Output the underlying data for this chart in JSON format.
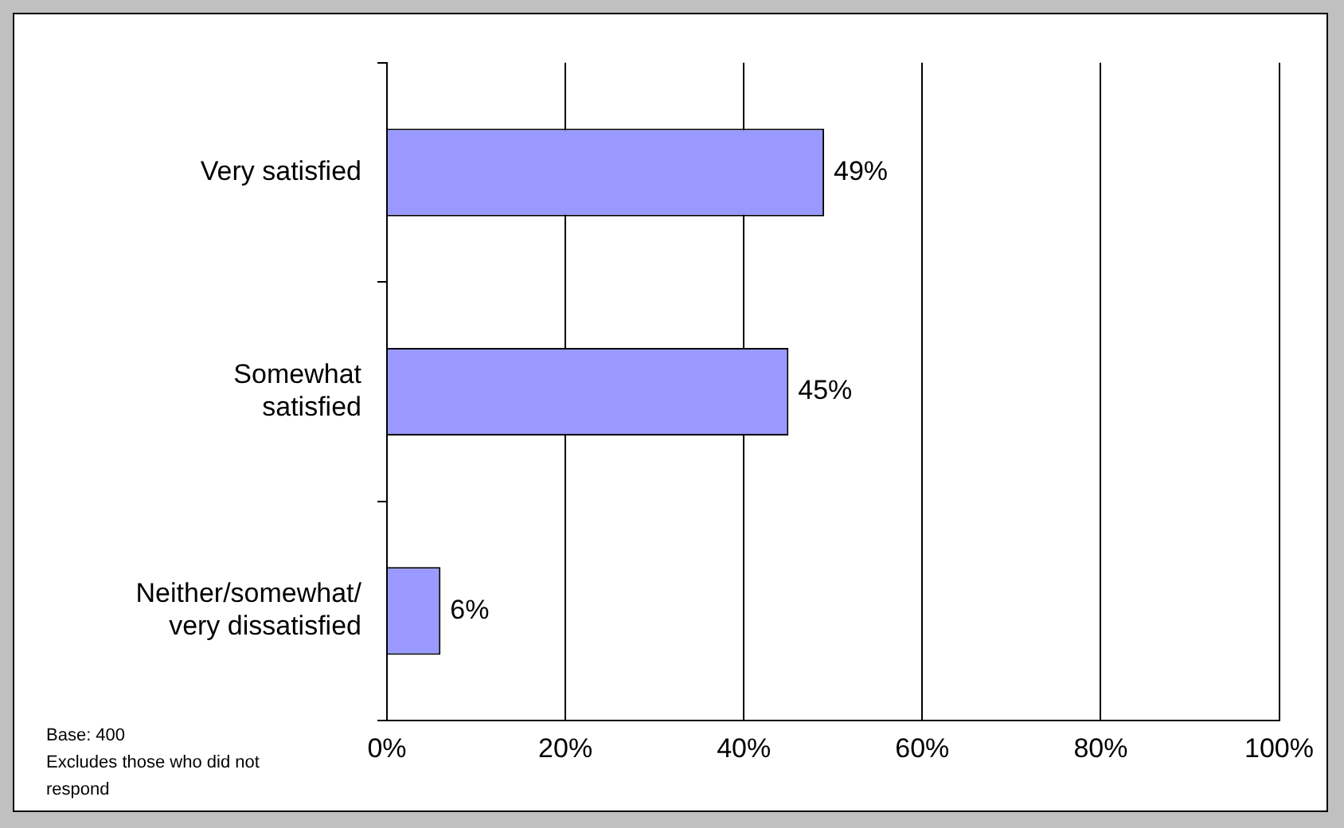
{
  "chart_data": {
    "type": "bar",
    "orientation": "horizontal",
    "categories": [
      "Very satisfied",
      "Somewhat satisfied",
      "Neither/somewhat/ very dissatisfied"
    ],
    "values": [
      49,
      45,
      6
    ],
    "color": "#9999ff",
    "value_labels": [
      "49%",
      "45%",
      "6%"
    ],
    "xlim": [
      0,
      100
    ],
    "xticks": [
      {
        "value": 0,
        "label": "0%"
      },
      {
        "value": 20,
        "label": "20%"
      },
      {
        "value": 40,
        "label": "40%"
      },
      {
        "value": 60,
        "label": "60%"
      },
      {
        "value": 80,
        "label": "80%"
      },
      {
        "value": 100,
        "label": "100%"
      }
    ],
    "grid": "x",
    "legend": false,
    "annotations": [
      "Base: 400",
      "Excludes those who did not respond"
    ]
  }
}
